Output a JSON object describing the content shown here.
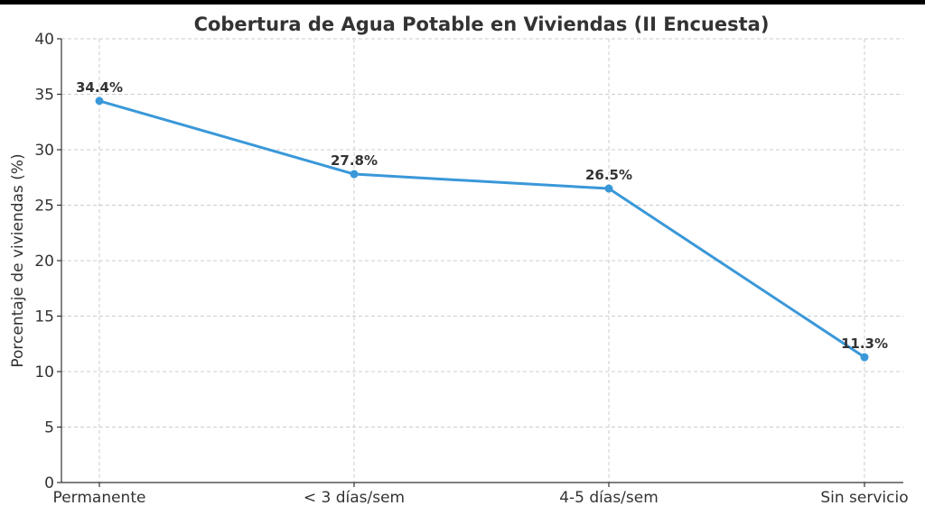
{
  "chart_data": {
    "type": "line",
    "title": "Cobertura de Agua Potable en Viviendas (II Encuesta)",
    "xlabel": "",
    "ylabel": "Porcentaje de viviendas (%)",
    "categories": [
      "Permanente",
      "< 3 días/sem",
      "4-5 días/sem",
      "Sin servicio"
    ],
    "series": [
      {
        "values": [
          34.4,
          27.8,
          26.5,
          11.3
        ],
        "data_labels": [
          "34.4%",
          "27.8%",
          "26.5%",
          "11.3%"
        ],
        "color": "#3a98d9"
      }
    ],
    "ylim": [
      0,
      40
    ],
    "yticks": [
      0,
      5,
      10,
      15,
      20,
      25,
      30,
      35,
      40
    ],
    "grid": true,
    "legend": "none"
  }
}
